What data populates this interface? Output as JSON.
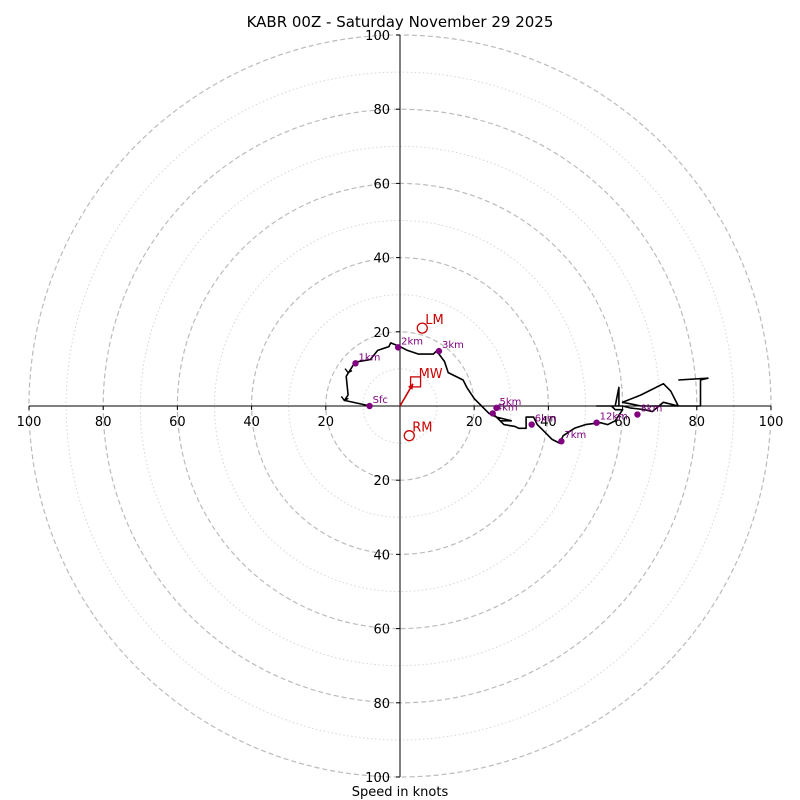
{
  "chart_data": {
    "type": "hodograph",
    "title": "KABR 00Z - Saturday November 29 2025",
    "xlabel": "Speed in knots",
    "units": "knots",
    "range": [
      -100,
      100
    ],
    "rings_major": [
      20,
      40,
      60,
      80,
      100
    ],
    "rings_minor": [
      10,
      30,
      50,
      70,
      90
    ],
    "tick_labels": [
      "100",
      "80",
      "60",
      "40",
      "20",
      "20",
      "40",
      "60",
      "80",
      "100"
    ],
    "y_tick_labels": [
      "100",
      "80",
      "60",
      "40",
      "20",
      "20",
      "40",
      "60",
      "80",
      "100"
    ],
    "trace": [
      [
        -8,
        0
      ],
      [
        -15,
        1.5
      ],
      [
        -14,
        3
      ],
      [
        -14.5,
        8
      ],
      [
        -12,
        12
      ],
      [
        -11,
        12
      ],
      [
        -8,
        12.5
      ],
      [
        -6,
        15
      ],
      [
        -3,
        16
      ],
      [
        -2.5,
        17
      ],
      [
        0,
        16
      ],
      [
        2,
        15
      ],
      [
        5,
        14
      ],
      [
        9,
        14
      ],
      [
        10,
        15
      ],
      [
        10.5,
        14
      ],
      [
        12,
        12
      ],
      [
        13,
        9
      ],
      [
        17,
        7
      ],
      [
        18,
        5
      ],
      [
        20,
        2
      ],
      [
        24,
        -2
      ],
      [
        26,
        -3
      ],
      [
        30,
        -4
      ],
      [
        27,
        -4
      ],
      [
        25,
        -2
      ],
      [
        28,
        -5
      ],
      [
        31,
        -5.5
      ],
      [
        32,
        -6
      ],
      [
        34,
        -6
      ],
      [
        34,
        -3
      ],
      [
        36,
        -3
      ],
      [
        37,
        -5
      ],
      [
        40,
        -8
      ],
      [
        41,
        -9
      ],
      [
        43,
        -10
      ],
      [
        44,
        -8
      ],
      [
        47,
        -6
      ],
      [
        50,
        -5
      ],
      [
        54,
        -4.5
      ],
      [
        56,
        -5
      ],
      [
        58,
        -4
      ],
      [
        60,
        -1
      ],
      [
        58,
        -1
      ],
      [
        57,
        0
      ],
      [
        53,
        0
      ],
      [
        53,
        0
      ],
      [
        59,
        0
      ],
      [
        59,
        3
      ],
      [
        59,
        5
      ],
      [
        58,
        0
      ],
      [
        60,
        0
      ],
      [
        62,
        -0.5
      ],
      [
        66,
        -1
      ],
      [
        68,
        -1.5
      ],
      [
        71,
        1
      ],
      [
        75,
        0
      ],
      [
        73,
        4
      ],
      [
        71,
        6
      ],
      [
        65,
        3
      ],
      [
        60,
        1
      ],
      [
        65,
        0
      ],
      [
        75,
        0
      ],
      [
        81,
        0
      ],
      [
        81,
        7
      ],
      [
        83,
        7.5
      ],
      [
        75,
        7
      ]
    ],
    "height_markers": [
      {
        "label": "Sfc",
        "u": -8.2,
        "v": 0
      },
      {
        "label": "1km",
        "u": -12,
        "v": 11.5
      },
      {
        "label": "2km",
        "u": -0.5,
        "v": 15.8
      },
      {
        "label": "3km",
        "u": 10.5,
        "v": 14.8
      },
      {
        "label": "4km",
        "u": 25,
        "v": -2
      },
      {
        "label": "5km",
        "u": 26,
        "v": -0.5
      },
      {
        "label": "6km",
        "u": 35.5,
        "v": -5
      },
      {
        "label": "7km",
        "u": 43.5,
        "v": -9.5
      },
      {
        "label": "8km",
        "u": 64,
        "v": -2.3
      },
      {
        "label": "12km",
        "u": 53,
        "v": -4.5
      }
    ],
    "storm_motions": [
      {
        "label": "LM",
        "u": 6,
        "v": 21,
        "marker": "circle"
      },
      {
        "label": "RM",
        "u": 2.5,
        "v": -8,
        "marker": "circle"
      },
      {
        "label": "MW",
        "u": 4.2,
        "v": 6.5,
        "marker": "square"
      }
    ],
    "mean_wind_vector": {
      "from": [
        0,
        0
      ],
      "to": [
        3.5,
        6
      ]
    },
    "colors": {
      "trace": "#000000",
      "height_marker": "#800080",
      "storm_motion": "#cc0000",
      "ring_major": "#bbbbbb",
      "ring_minor": "#d6d6d6",
      "axis": "#000000"
    }
  }
}
